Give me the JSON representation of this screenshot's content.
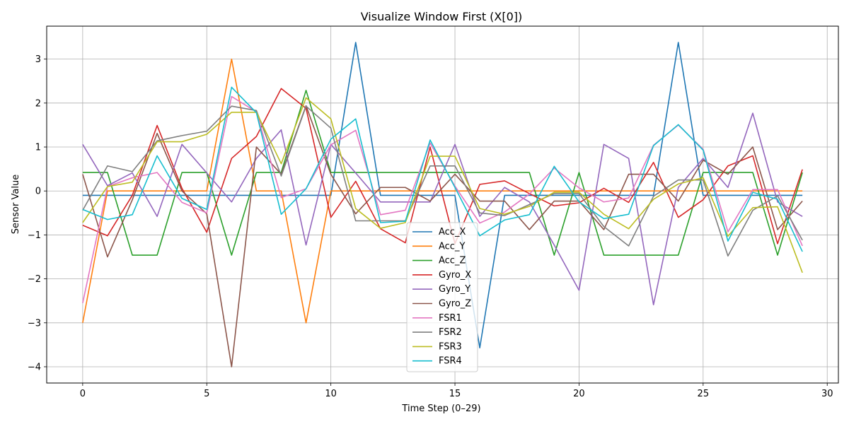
{
  "chart_data": {
    "type": "line",
    "title": "Visualize Window First (X[0])",
    "xlabel": "Time Step (0–29)",
    "ylabel": "Sensor Value",
    "xlim": [
      -1.45,
      30.45
    ],
    "ylim": [
      -4.37,
      3.75
    ],
    "xticks": [
      0,
      5,
      10,
      15,
      20,
      25,
      30
    ],
    "yticks": [
      -4,
      -3,
      -2,
      -1,
      0,
      1,
      2,
      3
    ],
    "ytick_labels": [
      "−4",
      "−3",
      "−2",
      "−1",
      "0",
      "1",
      "2",
      "3"
    ],
    "grid": true,
    "legend_position": "lower-center",
    "x": [
      0,
      1,
      2,
      3,
      4,
      5,
      6,
      7,
      8,
      9,
      10,
      11,
      12,
      13,
      14,
      15,
      16,
      17,
      18,
      19,
      20,
      21,
      22,
      23,
      24,
      25,
      26,
      27,
      28,
      29
    ],
    "series": [
      {
        "name": "Acc_X",
        "color": "#1f77b4",
        "values": [
          -0.1,
          -0.1,
          -0.1,
          -0.1,
          -0.1,
          -0.1,
          -0.1,
          -0.1,
          -0.1,
          -0.1,
          -0.1,
          3.38,
          -0.1,
          -0.1,
          -0.1,
          -0.1,
          -3.57,
          -0.1,
          -0.1,
          -0.1,
          -0.1,
          -0.1,
          -0.1,
          -0.1,
          3.38,
          -0.1,
          -0.1,
          -0.1,
          -0.1,
          -0.1
        ]
      },
      {
        "name": "Acc_Y",
        "color": "#ff7f0e",
        "values": [
          -3.0,
          0.0,
          0.0,
          0.0,
          0.0,
          0.0,
          3.0,
          0.0,
          0.0,
          -3.0,
          0.0,
          0.0,
          0.0,
          0.0,
          0.0,
          0.0,
          0.0,
          0.0,
          0.0,
          0.0,
          0.0,
          0.0,
          0.0,
          0.0,
          0.0,
          0.0,
          0.0,
          0.0,
          0.0,
          0.0
        ]
      },
      {
        "name": "Acc_Z",
        "color": "#2ca02c",
        "values": [
          0.42,
          0.42,
          -1.46,
          -1.46,
          0.42,
          0.42,
          -1.46,
          0.42,
          0.42,
          2.29,
          0.42,
          0.42,
          0.42,
          0.42,
          0.42,
          0.42,
          0.42,
          0.42,
          0.42,
          -1.46,
          0.42,
          -1.46,
          -1.46,
          -1.46,
          -1.46,
          0.42,
          0.42,
          0.42,
          -1.46,
          0.42
        ]
      },
      {
        "name": "Gyro_X",
        "color": "#d62728",
        "values": [
          -0.78,
          -1.02,
          -0.1,
          1.49,
          0.06,
          -0.94,
          0.74,
          1.24,
          2.33,
          1.88,
          -0.6,
          0.22,
          -0.86,
          -1.18,
          1.0,
          -1.2,
          0.15,
          0.23,
          -0.06,
          -0.34,
          -0.27,
          0.06,
          -0.26,
          0.65,
          -0.6,
          -0.2,
          0.57,
          0.8,
          -1.2,
          0.49
        ]
      },
      {
        "name": "Gyro_Y",
        "color": "#9467bd",
        "values": [
          1.06,
          0.12,
          0.41,
          -0.58,
          1.06,
          0.41,
          -0.25,
          0.74,
          1.39,
          -1.23,
          1.06,
          0.41,
          -0.25,
          -0.25,
          -0.25,
          1.06,
          -0.58,
          0.08,
          -0.25,
          -1.23,
          -2.26,
          1.06,
          0.74,
          -2.59,
          0.08,
          0.74,
          0.08,
          1.77,
          -0.25,
          -0.58
        ]
      },
      {
        "name": "Gyro_Z",
        "color": "#8c564b",
        "values": [
          0.38,
          -1.5,
          -0.2,
          1.31,
          0.0,
          -0.52,
          -4.0,
          1.0,
          0.38,
          1.94,
          0.38,
          -0.52,
          0.08,
          0.08,
          -0.23,
          0.38,
          -0.23,
          -0.23,
          -0.88,
          -0.23,
          -0.23,
          -0.88,
          0.38,
          0.38,
          -0.23,
          0.7,
          0.38,
          1.0,
          -0.88,
          -0.23
        ]
      },
      {
        "name": "FSR1",
        "color": "#e377c2",
        "values": [
          -2.55,
          0.1,
          0.3,
          0.42,
          -0.26,
          -0.5,
          2.15,
          1.8,
          -0.15,
          0.05,
          1.05,
          1.38,
          -0.54,
          -0.44,
          1.09,
          0.11,
          -0.73,
          -0.48,
          -0.07,
          0.52,
          0.07,
          -0.25,
          -0.16,
          1.04,
          1.5,
          0.95,
          -0.93,
          0.03,
          0.03,
          -1.25
        ]
      },
      {
        "name": "FSR2",
        "color": "#7f7f7f",
        "values": [
          -0.44,
          0.57,
          0.44,
          1.14,
          1.26,
          1.36,
          1.93,
          1.83,
          0.34,
          1.93,
          1.43,
          -0.68,
          -0.68,
          -0.68,
          0.57,
          0.57,
          -0.5,
          -0.56,
          -0.31,
          -0.06,
          -0.06,
          -0.81,
          -1.25,
          -0.12,
          0.25,
          0.25,
          -1.48,
          -0.44,
          -0.11,
          -1.12
        ]
      },
      {
        "name": "FSR3",
        "color": "#bcbd22",
        "values": [
          -0.72,
          0.1,
          0.2,
          1.12,
          1.12,
          1.29,
          1.79,
          1.79,
          0.62,
          2.12,
          1.64,
          -0.4,
          -0.85,
          -0.72,
          0.79,
          0.79,
          -0.4,
          -0.53,
          -0.35,
          -0.03,
          -0.03,
          -0.53,
          -0.86,
          -0.19,
          0.16,
          0.3,
          -1.03,
          -0.38,
          -0.36,
          -1.86
        ]
      },
      {
        "name": "FSR4",
        "color": "#17becf",
        "values": [
          -0.42,
          -0.65,
          -0.54,
          0.8,
          -0.17,
          -0.42,
          2.36,
          1.78,
          -0.53,
          0.05,
          1.18,
          1.64,
          -0.72,
          -0.69,
          1.16,
          0.08,
          -1.02,
          -0.66,
          -0.54,
          0.56,
          -0.25,
          -0.63,
          -0.53,
          1.03,
          1.51,
          0.93,
          -1.14,
          -0.03,
          -0.19,
          -1.38
        ]
      }
    ]
  }
}
